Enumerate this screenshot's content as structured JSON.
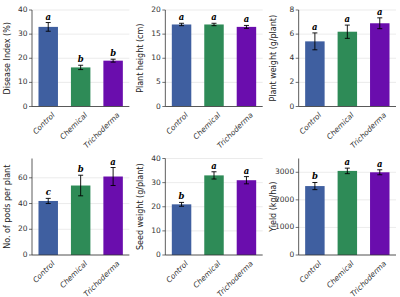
{
  "chart_data": [
    {
      "type": "bar",
      "y_label": "Disease Index (%)",
      "categories": [
        "Control",
        "Chemical",
        "Trichoderma"
      ],
      "values": [
        33.0,
        16.2,
        19.0
      ],
      "errors": [
        1.8,
        0.9,
        0.6
      ],
      "letters": [
        "a",
        "b",
        "b"
      ],
      "colors": [
        "#3F5FA0",
        "#2E8B57",
        "#6A0DAD"
      ],
      "ylim": [
        0,
        40
      ],
      "yticks": [
        0,
        10,
        20,
        30,
        40
      ],
      "grid": true
    },
    {
      "type": "bar",
      "y_label": "Plant height (cm)",
      "categories": [
        "Control",
        "Chemical",
        "Trichoderma"
      ],
      "values": [
        17.0,
        17.0,
        16.5
      ],
      "errors": [
        0.25,
        0.25,
        0.3
      ],
      "letters": [
        "a",
        "a",
        "a"
      ],
      "colors": [
        "#3F5FA0",
        "#2E8B57",
        "#6A0DAD"
      ],
      "ylim": [
        0,
        20
      ],
      "yticks": [
        0,
        5,
        10,
        15,
        20
      ],
      "grid": true
    },
    {
      "type": "bar",
      "y_label": "Plant weight (g/plant)",
      "categories": [
        "Control",
        "Chemical",
        "Trichoderma"
      ],
      "values": [
        5.4,
        6.2,
        6.9
      ],
      "errors": [
        0.7,
        0.55,
        0.45
      ],
      "letters": [
        "a",
        "a",
        "a"
      ],
      "colors": [
        "#3F5FA0",
        "#2E8B57",
        "#6A0DAD"
      ],
      "ylim": [
        0,
        8
      ],
      "yticks": [
        0,
        2,
        4,
        6,
        8
      ],
      "grid": true
    },
    {
      "type": "bar",
      "y_label": "No. of pods per plant",
      "categories": [
        "Control",
        "Chemical",
        "Trichoderma"
      ],
      "values": [
        42.0,
        54.0,
        61.0
      ],
      "errors": [
        2.0,
        8.0,
        7.0
      ],
      "letters": [
        "c",
        "b",
        "a"
      ],
      "colors": [
        "#3F5FA0",
        "#2E8B57",
        "#6A0DAD"
      ],
      "ylim": [
        0,
        75
      ],
      "yticks": [
        0,
        20,
        40,
        60
      ],
      "grid": true
    },
    {
      "type": "bar",
      "y_label": "Seed weight (g/plant)",
      "categories": [
        "Control",
        "Chemical",
        "Trichoderma"
      ],
      "values": [
        21.0,
        33.0,
        31.0
      ],
      "errors": [
        0.8,
        1.5,
        1.5
      ],
      "letters": [
        "b",
        "a",
        "a"
      ],
      "colors": [
        "#3F5FA0",
        "#2E8B57",
        "#6A0DAD"
      ],
      "ylim": [
        0,
        40
      ],
      "yticks": [
        0,
        10,
        20,
        30,
        40
      ],
      "grid": true
    },
    {
      "type": "bar",
      "y_label": "Yield (kg/ha)",
      "categories": [
        "Control",
        "Chemical",
        "Trichoderma"
      ],
      "values": [
        2500,
        3050,
        3000
      ],
      "errors": [
        130,
        100,
        90
      ],
      "letters": [
        "b",
        "a",
        "a"
      ],
      "colors": [
        "#3F5FA0",
        "#2E8B57",
        "#6A0DAD"
      ],
      "ylim": [
        0,
        3500
      ],
      "yticks": [
        0,
        1000,
        2000,
        3000
      ],
      "grid": true
    }
  ]
}
